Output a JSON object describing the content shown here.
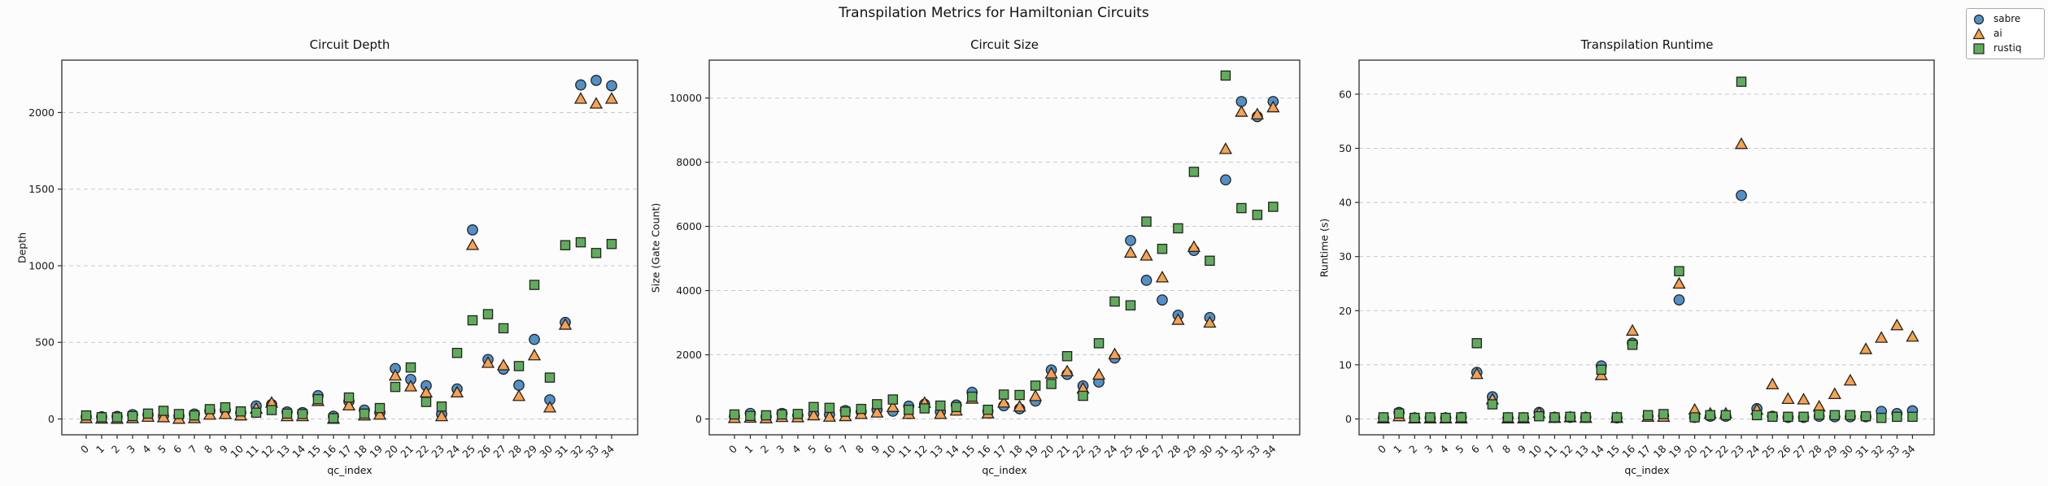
{
  "figure": {
    "suptitle": "Transpilation Metrics for Hamiltonian Circuits",
    "background": "#fcfcfc",
    "edge_color": "#222222",
    "grid_color": "#cbc7c7",
    "frame_color": "#2e2e2e"
  },
  "legend": {
    "position": "figure-top-right",
    "items": [
      {
        "label": "sabre",
        "marker": "circle",
        "color": "#5291c8"
      },
      {
        "label": "ai",
        "marker": "triangle",
        "color": "#f9a14e"
      },
      {
        "label": "rustiq",
        "marker": "square",
        "color": "#5fad5c"
      }
    ]
  },
  "chart_data": [
    {
      "type": "scatter",
      "title": "Circuit Depth",
      "xlabel": "qc_index",
      "ylabel": "Depth",
      "x": [
        0,
        1,
        2,
        3,
        4,
        5,
        6,
        7,
        8,
        9,
        10,
        11,
        12,
        13,
        14,
        15,
        16,
        17,
        18,
        19,
        20,
        21,
        22,
        23,
        24,
        25,
        26,
        27,
        28,
        29,
        30,
        31,
        32,
        33,
        34
      ],
      "yticks": [
        0,
        500,
        1000,
        1500,
        2000
      ],
      "ylim": [
        -100,
        2345
      ],
      "xlim": [
        -1.7,
        35.7
      ],
      "grid": "horizontal-dashed",
      "series": [
        {
          "name": "sabre",
          "marker": "circle",
          "color": "#5291c8",
          "values": [
            14,
            14,
            17,
            28,
            28,
            19,
            19,
            32,
            53,
            58,
            41,
            85,
            94,
            46,
            41,
            152,
            18,
            115,
            58,
            41,
            329,
            258,
            217,
            32,
            196,
            1234,
            388,
            325,
            220,
            519,
            125,
            630,
            2180,
            2210,
            2175
          ]
        },
        {
          "name": "ai",
          "marker": "triangle",
          "color": "#f9a14e",
          "values": [
            5,
            2,
            1,
            5,
            14,
            11,
            1,
            5,
            28,
            32,
            23,
            67,
            106,
            18,
            18,
            117,
            1,
            88,
            23,
            28,
            283,
            212,
            173,
            18,
            173,
            1135,
            366,
            350,
            150,
            415,
            75,
            615,
            2090,
            2058,
            2090
          ]
        },
        {
          "name": "rustiq",
          "marker": "square",
          "color": "#5fad5c",
          "values": [
            23,
            11,
            11,
            19,
            35,
            53,
            32,
            23,
            64,
            76,
            49,
            41,
            58,
            35,
            32,
            129,
            5,
            140,
            35,
            71,
            209,
            336,
            111,
            81,
            431,
            644,
            684,
            592,
            345,
            875,
            270,
            1134,
            1153,
            1083,
            1142
          ]
        }
      ]
    },
    {
      "type": "scatter",
      "title": "Circuit Size",
      "xlabel": "qc_index",
      "ylabel": "Size (Gate Count)",
      "x": [
        0,
        1,
        2,
        3,
        4,
        5,
        6,
        7,
        8,
        9,
        10,
        11,
        12,
        13,
        14,
        15,
        16,
        17,
        18,
        19,
        20,
        21,
        22,
        23,
        24,
        25,
        26,
        27,
        28,
        29,
        30,
        31,
        32,
        33,
        34
      ],
      "yticks": [
        0,
        2000,
        4000,
        6000,
        8000,
        10000
      ],
      "ylim": [
        -480,
        11190
      ],
      "xlim": [
        -1.7,
        35.7
      ],
      "grid": "horizontal-dashed",
      "series": [
        {
          "name": "sabre",
          "marker": "circle",
          "color": "#5291c8",
          "values": [
            80,
            173,
            69,
            173,
            113,
            156,
            139,
            260,
            225,
            286,
            242,
            398,
            459,
            225,
            433,
            831,
            242,
            410,
            317,
            558,
            1527,
            1390,
            1030,
            1150,
            1900,
            5560,
            4320,
            3707,
            3234,
            5250,
            3160,
            7450,
            9890,
            9420,
            9890
          ]
        },
        {
          "name": "ai",
          "marker": "triangle",
          "color": "#f9a14e",
          "values": [
            30,
            40,
            20,
            60,
            52,
            113,
            69,
            87,
            156,
            199,
            372,
            156,
            502,
            156,
            260,
            632,
            173,
            510,
            386,
            712,
            1416,
            1484,
            944,
            1380,
            2016,
            5180,
            5090,
            4410,
            3088,
            5360,
            3000,
            8410,
            9570,
            9490,
            9710
          ]
        },
        {
          "name": "rustiq",
          "marker": "square",
          "color": "#5fad5c",
          "values": [
            140,
            95,
            113,
            139,
            156,
            372,
            346,
            225,
            312,
            459,
            606,
            286,
            329,
            416,
            372,
            693,
            286,
            760,
            746,
            1038,
            1090,
            1956,
            721,
            2359,
            3660,
            3540,
            6150,
            5300,
            5940,
            7700,
            4930,
            10700,
            6570,
            6360,
            6610
          ]
        }
      ]
    },
    {
      "type": "scatter",
      "title": "Transpilation Runtime",
      "xlabel": "qc_index",
      "ylabel": "Runtime (s)",
      "x": [
        0,
        1,
        2,
        3,
        4,
        5,
        6,
        7,
        8,
        9,
        10,
        11,
        12,
        13,
        14,
        15,
        16,
        17,
        18,
        19,
        20,
        21,
        22,
        23,
        24,
        25,
        26,
        27,
        28,
        29,
        30,
        31,
        32,
        33,
        34
      ],
      "yticks": [
        0,
        10,
        20,
        30,
        40,
        50,
        60
      ],
      "ylim": [
        -3.3,
        66
      ],
      "xlim": [
        -1.7,
        35.7
      ],
      "grid": "horizontal-dashed",
      "series": [
        {
          "name": "sabre",
          "marker": "circle",
          "color": "#5291c8",
          "values": [
            0.2,
            1.2,
            0.2,
            0.2,
            0.2,
            0.3,
            8.6,
            4.1,
            0.2,
            0.2,
            1.2,
            0.3,
            0.3,
            0.3,
            9.8,
            0.2,
            14.0,
            0.5,
            0.6,
            22.0,
            0.3,
            0.5,
            0.5,
            41.3,
            1.9,
            0.5,
            0.3,
            0.3,
            0.5,
            0.4,
            0.4,
            0.4,
            1.4,
            1.0,
            1.5
          ]
        },
        {
          "name": "ai",
          "marker": "triangle",
          "color": "#f9a14e",
          "values": [
            0.1,
            0.5,
            0.1,
            0.1,
            0.1,
            0.1,
            8.3,
            3.6,
            0.1,
            0.1,
            1.1,
            0.2,
            0.3,
            0.2,
            8.1,
            0.2,
            16.3,
            0.4,
            0.4,
            25.0,
            1.7,
            1.0,
            1.0,
            50.8,
            1.7,
            6.4,
            3.7,
            3.6,
            2.3,
            4.6,
            7.1,
            12.9,
            15.0,
            17.3,
            15.2
          ]
        },
        {
          "name": "rustiq",
          "marker": "square",
          "color": "#5fad5c",
          "values": [
            0.3,
            1.0,
            0.2,
            0.3,
            0.2,
            0.3,
            14.0,
            2.7,
            0.3,
            0.3,
            0.5,
            0.3,
            0.4,
            0.3,
            9.1,
            0.3,
            13.7,
            0.7,
            0.9,
            27.3,
            0.3,
            0.7,
            0.7,
            62.3,
            0.7,
            0.4,
            0.4,
            0.4,
            0.8,
            0.7,
            0.7,
            0.5,
            0.2,
            0.4,
            0.4
          ]
        }
      ]
    }
  ]
}
